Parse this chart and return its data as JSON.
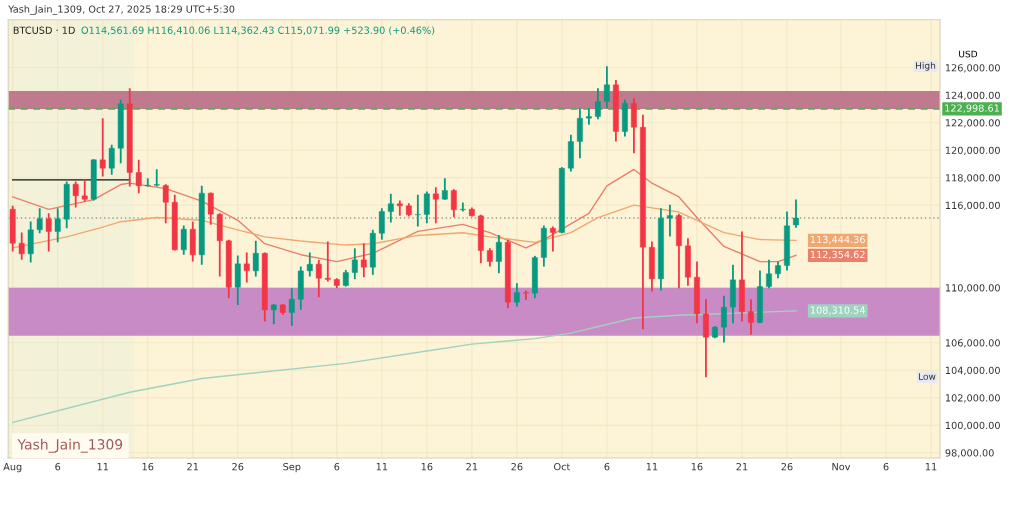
{
  "chart_data": {
    "type": "candlestick",
    "title": "BTCUSD · 1D",
    "subtitle": "O114,561.69 H116,410.06 L114,362.43 C115,071.99 +523.90 (+0.46%)",
    "ylabel": "USD",
    "annotations": [
      "Yash_Jain_1309, Oct 27, 2025 18:29 UTC+5:30",
      "Yash_Jain_1309",
      {
        "text": "High",
        "y": 126100
      },
      {
        "text": "Low",
        "y": 103491
      }
    ],
    "x": [
      "2025-08-01",
      "2025-08-02",
      "2025-08-03",
      "2025-08-04",
      "2025-08-05",
      "2025-08-06",
      "2025-08-07",
      "2025-08-08",
      "2025-08-09",
      "2025-08-10",
      "2025-08-11",
      "2025-08-12",
      "2025-08-13",
      "2025-08-14",
      "2025-08-15",
      "2025-08-16",
      "2025-08-17",
      "2025-08-18",
      "2025-08-19",
      "2025-08-20",
      "2025-08-21",
      "2025-08-22",
      "2025-08-23",
      "2025-08-24",
      "2025-08-25",
      "2025-08-26",
      "2025-08-27",
      "2025-08-28",
      "2025-08-29",
      "2025-08-30",
      "2025-08-31",
      "2025-09-01",
      "2025-09-02",
      "2025-09-03",
      "2025-09-04",
      "2025-09-05",
      "2025-09-06",
      "2025-09-07",
      "2025-09-08",
      "2025-09-09",
      "2025-09-10",
      "2025-09-11",
      "2025-09-12",
      "2025-09-13",
      "2025-09-14",
      "2025-09-15",
      "2025-09-16",
      "2025-09-17",
      "2025-09-18",
      "2025-09-19",
      "2025-09-20",
      "2025-09-21",
      "2025-09-22",
      "2025-09-23",
      "2025-09-24",
      "2025-09-25",
      "2025-09-26",
      "2025-09-27",
      "2025-09-28",
      "2025-09-29",
      "2025-09-30",
      "2025-10-01",
      "2025-10-02",
      "2025-10-03",
      "2025-10-04",
      "2025-10-05",
      "2025-10-06",
      "2025-10-07",
      "2025-10-08",
      "2025-10-09",
      "2025-10-10",
      "2025-10-11",
      "2025-10-12",
      "2025-10-13",
      "2025-10-14",
      "2025-10-15",
      "2025-10-16",
      "2025-10-17",
      "2025-10-18",
      "2025-10-19",
      "2025-10-20",
      "2025-10-21",
      "2025-10-22",
      "2025-10-23",
      "2025-10-24",
      "2025-10-25",
      "2025-10-26",
      "2025-10-27"
    ],
    "ohlc": [
      [
        115708,
        115950,
        112629,
        113235
      ],
      [
        113236,
        114011,
        112024,
        112460
      ],
      [
        112460,
        114811,
        111830,
        114205
      ],
      [
        114205,
        115781,
        113962,
        115005
      ],
      [
        115005,
        115417,
        112630,
        114084
      ],
      [
        114084,
        115781,
        113308,
        115005
      ],
      [
        114981,
        117720,
        114326,
        117526
      ],
      [
        117526,
        117720,
        115829,
        116678
      ],
      [
        116678,
        117890,
        116265,
        116435
      ],
      [
        116435,
        119344,
        116338,
        119295
      ],
      [
        119295,
        122325,
        118083,
        118689
      ],
      [
        118689,
        120386,
        118205,
        120144
      ],
      [
        120144,
        123659,
        119053,
        123368
      ],
      [
        123368,
        124507,
        117357,
        118374
      ],
      [
        118374,
        119295,
        116871,
        117405
      ],
      [
        117405,
        117962,
        117357,
        117450
      ],
      [
        117450,
        118617,
        117357,
        117500
      ],
      [
        117430,
        117526,
        114690,
        116217
      ],
      [
        116217,
        116750,
        112702,
        112751
      ],
      [
        112751,
        114520,
        112387,
        114254
      ],
      [
        114254,
        114811,
        111902,
        112387
      ],
      [
        112387,
        117405,
        111660,
        116871
      ],
      [
        116871,
        116920,
        114569,
        115344
      ],
      [
        115344,
        115417,
        110811,
        113405
      ],
      [
        113405,
        113478,
        109236,
        110036
      ],
      [
        110036,
        112338,
        108751,
        111733
      ],
      [
        111733,
        112557,
        110375,
        111224
      ],
      [
        111224,
        113405,
        110811,
        112508
      ],
      [
        112508,
        112557,
        107539,
        108388
      ],
      [
        108388,
        108824,
        107345,
        108751
      ],
      [
        108751,
        108824,
        108024,
        108194
      ],
      [
        108194,
        109963,
        107224,
        109163
      ],
      [
        109163,
        111539,
        108388,
        111224
      ],
      [
        111224,
        112557,
        110811,
        111708
      ],
      [
        111708,
        112024,
        109308,
        110690
      ],
      [
        110690,
        113357,
        110448,
        110600
      ],
      [
        110600,
        110690,
        109963,
        110157
      ],
      [
        110157,
        111296,
        110084,
        111102
      ],
      [
        111102,
        112873,
        110617,
        112024
      ],
      [
        112024,
        113236,
        110763,
        111490
      ],
      [
        111490,
        114205,
        110933,
        113962
      ],
      [
        113962,
        115781,
        113478,
        115538
      ],
      [
        115538,
        116823,
        114738,
        116096
      ],
      [
        116096,
        116338,
        115223,
        115950
      ],
      [
        115950,
        116144,
        115175,
        115296
      ],
      [
        115296,
        116750,
        114448,
        115330
      ],
      [
        115330,
        116993,
        114690,
        116823
      ],
      [
        116823,
        117308,
        114690,
        116435
      ],
      [
        116435,
        117962,
        116387,
        117065
      ],
      [
        117065,
        117162,
        115126,
        115660
      ],
      [
        115660,
        116193,
        115538,
        115700
      ],
      [
        115700,
        115829,
        115175,
        115223
      ],
      [
        115223,
        115296,
        111781,
        112702
      ],
      [
        112702,
        112873,
        111539,
        111902
      ],
      [
        111902,
        113841,
        111054,
        113308
      ],
      [
        113308,
        113478,
        108509,
        108945
      ],
      [
        108945,
        110327,
        108630,
        109648
      ],
      [
        109648,
        109793,
        109115,
        109600
      ],
      [
        109600,
        112314,
        109236,
        112193
      ],
      [
        112193,
        114520,
        111539,
        114326
      ],
      [
        114326,
        114448,
        112630,
        114011
      ],
      [
        114011,
        118762,
        113962,
        118689
      ],
      [
        118689,
        121113,
        118447,
        120629
      ],
      [
        120629,
        123053,
        119417,
        122325
      ],
      [
        122325,
        123053,
        121841,
        122447
      ],
      [
        122447,
        124507,
        122252,
        123537
      ],
      [
        123537,
        126100,
        123053,
        124749
      ],
      [
        124749,
        125100,
        120629,
        121356
      ],
      [
        121356,
        123659,
        120992,
        123416
      ],
      [
        123416,
        123780,
        119780,
        121671
      ],
      [
        121671,
        122568,
        106981,
        112945
      ],
      [
        112945,
        113357,
        109721,
        110642
      ],
      [
        110642,
        115781,
        109793,
        115053
      ],
      [
        115053,
        116023,
        113720,
        115247
      ],
      [
        115247,
        115369,
        109964,
        113042
      ],
      [
        113042,
        113600,
        110133,
        110764
      ],
      [
        110764,
        111903,
        107418,
        108097
      ],
      [
        108097,
        109164,
        103491,
        106400
      ],
      [
        106400,
        107224,
        106328,
        107127
      ],
      [
        107127,
        109406,
        106013,
        108582
      ],
      [
        108582,
        111660,
        107418,
        110570
      ],
      [
        110570,
        114084,
        107539,
        108267
      ],
      [
        108267,
        109164,
        106570,
        107467
      ],
      [
        107467,
        111248,
        107418,
        110085
      ],
      [
        110085,
        112024,
        109964,
        111006
      ],
      [
        111006,
        111903,
        110691,
        111612
      ],
      [
        111612,
        115539,
        111248,
        114497
      ],
      [
        114561.69,
        116410.06,
        114362.43,
        115071.99
      ]
    ],
    "colors": [
      "#f23645",
      "#f23645",
      "#089981",
      "#089981",
      "#f23645",
      "#089981",
      "#089981",
      "#f23645",
      "#f23645",
      "#089981",
      "#f23645",
      "#089981",
      "#089981",
      "#f23645",
      "#f23645",
      "#089981",
      "#089981",
      "#f23645",
      "#f23645",
      "#089981",
      "#f23645",
      "#089981",
      "#f23645",
      "#f23645",
      "#f23645",
      "#089981",
      "#f23645",
      "#089981",
      "#f23645",
      "#089981",
      "#f23645",
      "#089981",
      "#089981",
      "#089981",
      "#f23645",
      "#f23645",
      "#f23645",
      "#089981",
      "#089981",
      "#f23645",
      "#089981",
      "#089981",
      "#089981",
      "#f23645",
      "#f23645",
      "#089981",
      "#089981",
      "#f23645",
      "#089981",
      "#f23645",
      "#089981",
      "#f23645",
      "#f23645",
      "#f23645",
      "#089981",
      "#f23645",
      "#089981",
      "#f23645",
      "#089981",
      "#089981",
      "#f23645",
      "#089981",
      "#089981",
      "#089981",
      "#089981",
      "#089981",
      "#089981",
      "#f23645",
      "#089981",
      "#f23645",
      "#f23645",
      "#f23645",
      "#089981",
      "#089981",
      "#f23645",
      "#f23645",
      "#f23645",
      "#f23645",
      "#089981",
      "#089981",
      "#089981",
      "#f23645",
      "#f23645",
      "#089981",
      "#089981",
      "#089981",
      "#089981",
      "#089981"
    ],
    "series": [
      {
        "type": "line",
        "color": "#e8806a",
        "x": [
          "2025-08-01",
          "2025-08-05",
          "2025-08-10",
          "2025-08-13",
          "2025-08-14",
          "2025-08-18",
          "2025-08-22",
          "2025-08-26",
          "2025-08-29",
          "2025-09-02",
          "2025-09-06",
          "2025-09-10",
          "2025-09-15",
          "2025-09-20",
          "2025-09-23",
          "2025-09-27",
          "2025-09-29",
          "2025-10-04",
          "2025-10-06",
          "2025-10-09",
          "2025-10-11",
          "2025-10-14",
          "2025-10-16",
          "2025-10-19",
          "2025-10-23",
          "2025-10-25",
          "2025-10-27"
        ],
        "values": [
          116600,
          115700,
          116400,
          117500,
          117600,
          117200,
          116300,
          114900,
          113200,
          112400,
          111900,
          112500,
          114100,
          114600,
          114000,
          112900,
          113500,
          115400,
          117400,
          118600,
          117600,
          116600,
          115100,
          113000,
          111900,
          111900,
          112354.62
        ],
        "value_labels": [
          null,
          null,
          null,
          null,
          null,
          null,
          null,
          null,
          null,
          null,
          null,
          null,
          null,
          null,
          null,
          null,
          null,
          null,
          null,
          null,
          null,
          null,
          null,
          null,
          null,
          null,
          "112,354.62"
        ]
      },
      {
        "type": "line",
        "color": "#f0a870",
        "x": [
          "2025-08-01",
          "2025-08-07",
          "2025-08-11",
          "2025-08-13",
          "2025-08-17",
          "2025-08-22",
          "2025-08-26",
          "2025-08-29",
          "2025-09-02",
          "2025-09-07",
          "2025-09-10",
          "2025-09-15",
          "2025-09-20",
          "2025-09-23",
          "2025-09-28",
          "2025-10-02",
          "2025-10-05",
          "2025-10-09",
          "2025-10-11",
          "2025-10-14",
          "2025-10-16",
          "2025-10-19",
          "2025-10-23",
          "2025-10-27"
        ],
        "values": [
          112900,
          113700,
          114400,
          114800,
          115100,
          114900,
          114200,
          113700,
          113400,
          113100,
          113200,
          113800,
          114000,
          113700,
          113300,
          114000,
          115100,
          116000,
          115800,
          115500,
          114900,
          114000,
          113500,
          113444.36
        ],
        "value_labels": [
          null,
          null,
          null,
          null,
          null,
          null,
          null,
          null,
          null,
          null,
          null,
          null,
          null,
          null,
          null,
          null,
          null,
          null,
          null,
          null,
          null,
          null,
          null,
          "113,444.36"
        ]
      },
      {
        "type": "line",
        "color": "#9fd3c0",
        "x": [
          "2025-08-01",
          "2025-08-14",
          "2025-08-22",
          "2025-09-07",
          "2025-09-16",
          "2025-09-21",
          "2025-09-28",
          "2025-10-02",
          "2025-10-09",
          "2025-10-14",
          "2025-10-27"
        ],
        "values": [
          100200,
          102400,
          103400,
          104500,
          105400,
          105900,
          106300,
          106700,
          107800,
          108000,
          108310.54
        ],
        "value_labels": [
          null,
          null,
          null,
          null,
          null,
          null,
          null,
          null,
          null,
          null,
          "108,310.54"
        ]
      },
      {
        "type": "line",
        "color": "#111111",
        "x": [
          "2025-08-01",
          "2025-08-14"
        ],
        "values": [
          117840,
          117840
        ]
      }
    ],
    "ref_lines": [
      {
        "axis": "y",
        "value": 122998.61,
        "label": "122,998.61",
        "color": "#4caf50",
        "line_style": "dashed"
      },
      {
        "axis": "y",
        "value": 115071.99,
        "color": "#9a9a9a",
        "line_style": "dotted"
      }
    ],
    "bands": [
      {
        "axis": "y",
        "from": 123000,
        "to": 124300,
        "color": "#c07a8e"
      },
      {
        "axis": "y",
        "from": 106500,
        "to": 110000,
        "color": "#c98bc6"
      },
      {
        "axis": "x",
        "from": "2025-07-31T12:00",
        "to": "2025-08-14T12:00",
        "color": "#f3f1d8"
      }
    ],
    "xlim": [
      "2025-07-31T12:00",
      "2025-11-12"
    ],
    "ylim": [
      97620,
      129480
    ],
    "xticks": [
      {
        "value": "2025-08-01",
        "label": "Aug"
      },
      {
        "value": "2025-08-06",
        "label": "6"
      },
      {
        "value": "2025-08-11",
        "label": "11"
      },
      {
        "value": "2025-08-16",
        "label": "16"
      },
      {
        "value": "2025-08-21",
        "label": "21"
      },
      {
        "value": "2025-08-26",
        "label": "26"
      },
      {
        "value": "2025-09-01",
        "label": "Sep"
      },
      {
        "value": "2025-09-06",
        "label": "6"
      },
      {
        "value": "2025-09-11",
        "label": "11"
      },
      {
        "value": "2025-09-16",
        "label": "16"
      },
      {
        "value": "2025-09-21",
        "label": "21"
      },
      {
        "value": "2025-09-26",
        "label": "26"
      },
      {
        "value": "2025-10-01",
        "label": "Oct"
      },
      {
        "value": "2025-10-06",
        "label": "6"
      },
      {
        "value": "2025-10-11",
        "label": "11"
      },
      {
        "value": "2025-10-16",
        "label": "16"
      },
      {
        "value": "2025-10-21",
        "label": "21"
      },
      {
        "value": "2025-10-26",
        "label": "26"
      },
      {
        "value": "2025-11-01",
        "label": "Nov"
      },
      {
        "value": "2025-11-06",
        "label": "6"
      },
      {
        "value": "2025-11-11",
        "label": "11"
      }
    ],
    "yticks": [
      {
        "value": 98000,
        "label": "98,000.00"
      },
      {
        "value": 100000,
        "label": "100,000.00"
      },
      {
        "value": 102000,
        "label": "102,000.00"
      },
      {
        "value": 104000,
        "label": "104,000.00"
      },
      {
        "value": 106000,
        "label": "106,000.00"
      },
      {
        "value": 110000,
        "label": "110,000.00"
      },
      {
        "value": 116000,
        "label": "116,000.00"
      },
      {
        "value": 118000,
        "label": "118,000.00"
      },
      {
        "value": 120000,
        "label": "120,000.00"
      },
      {
        "value": 122000,
        "label": "122,000.00"
      },
      {
        "value": 124000,
        "label": "124,000.00"
      },
      {
        "value": 126000,
        "label": "126,000.00"
      }
    ],
    "grid": true
  }
}
